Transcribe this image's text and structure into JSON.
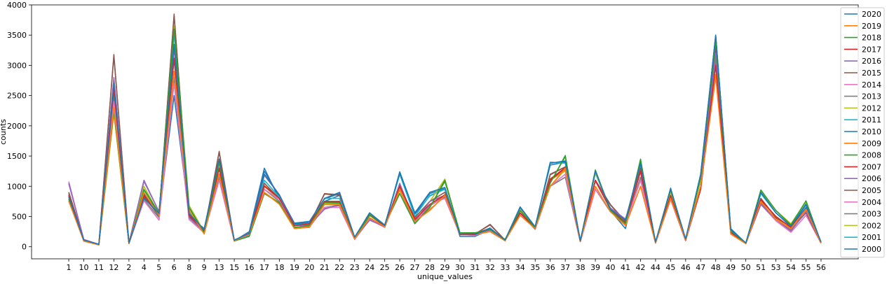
{
  "chart_data": {
    "type": "line",
    "xlabel": "unique_values",
    "ylabel": "counts",
    "ylim": [
      -200,
      4000
    ],
    "yticks": [
      0,
      500,
      1000,
      1500,
      2000,
      2500,
      3000,
      3500,
      4000
    ],
    "grid": false,
    "legend_position": "upper-right",
    "categories": [
      "1",
      "10",
      "11",
      "12",
      "2",
      "4",
      "5",
      "6",
      "8",
      "9",
      "13",
      "15",
      "16",
      "17",
      "18",
      "19",
      "20",
      "21",
      "22",
      "23",
      "24",
      "25",
      "26",
      "27",
      "28",
      "29",
      "30",
      "31",
      "32",
      "33",
      "34",
      "35",
      "36",
      "37",
      "38",
      "39",
      "40",
      "41",
      "42",
      "44",
      "45",
      "46",
      "47",
      "48",
      "49",
      "50",
      "51",
      "53",
      "54",
      "55",
      "56"
    ],
    "series": [
      {
        "name": "2020",
        "color": "#1f77b4",
        "values": [
          820,
          110,
          40,
          2700,
          60,
          800,
          550,
          3350,
          550,
          280,
          1450,
          110,
          220,
          1200,
          850,
          390,
          420,
          800,
          900,
          160,
          560,
          350,
          1220,
          560,
          900,
          980,
          200,
          200,
          300,
          110,
          650,
          330,
          1380,
          1420,
          100,
          1250,
          620,
          440,
          1380,
          80,
          960,
          130,
          1200,
          3500,
          280,
          60,
          900,
          560,
          340,
          700,
          80
        ]
      },
      {
        "name": "2019",
        "color": "#ff7f0e",
        "values": [
          750,
          90,
          30,
          2300,
          50,
          900,
          520,
          2900,
          600,
          210,
          1200,
          100,
          210,
          900,
          700,
          300,
          330,
          700,
          700,
          130,
          480,
          330,
          950,
          420,
          600,
          850,
          200,
          200,
          250,
          100,
          520,
          300,
          1000,
          1300,
          90,
          1000,
          580,
          350,
          1000,
          60,
          800,
          110,
          1000,
          2800,
          210,
          50,
          750,
          450,
          300,
          620,
          60
        ]
      },
      {
        "name": "2018",
        "color": "#2ca02c",
        "values": [
          780,
          100,
          35,
          2250,
          55,
          950,
          560,
          3600,
          650,
          230,
          1400,
          95,
          170,
          880,
          720,
          320,
          350,
          730,
          720,
          140,
          520,
          360,
          880,
          380,
          650,
          1100,
          230,
          230,
          280,
          120,
          600,
          320,
          1050,
          1510,
          95,
          1270,
          600,
          380,
          1450,
          70,
          940,
          120,
          1150,
          3400,
          260,
          60,
          940,
          600,
          360,
          760,
          70
        ]
      },
      {
        "name": "2017",
        "color": "#d62728",
        "values": [
          850,
          100,
          35,
          2600,
          55,
          850,
          530,
          3100,
          520,
          260,
          1300,
          100,
          220,
          1000,
          800,
          350,
          380,
          750,
          750,
          140,
          520,
          340,
          1000,
          450,
          700,
          860,
          210,
          220,
          300,
          110,
          560,
          320,
          1100,
          1300,
          90,
          1100,
          620,
          400,
          1250,
          70,
          850,
          110,
          950,
          3000,
          240,
          55,
          780,
          500,
          320,
          620,
          60
        ]
      },
      {
        "name": "2016",
        "color": "#9467bd",
        "values": [
          1050,
          120,
          40,
          2800,
          65,
          1100,
          580,
          3300,
          480,
          260,
          1200,
          100,
          230,
          1200,
          860,
          350,
          360,
          620,
          700,
          140,
          440,
          330,
          1050,
          420,
          750,
          850,
          210,
          210,
          290,
          110,
          600,
          300,
          1100,
          1300,
          90,
          1100,
          640,
          460,
          1250,
          70,
          830,
          120,
          1000,
          3200,
          260,
          60,
          700,
          450,
          260,
          580,
          70
        ]
      },
      {
        "name": "2015",
        "color": "#8c564b",
        "values": [
          900,
          110,
          40,
          3180,
          60,
          820,
          520,
          3850,
          500,
          250,
          1580,
          100,
          230,
          1050,
          800,
          350,
          370,
          880,
          860,
          150,
          530,
          350,
          1000,
          480,
          750,
          900,
          210,
          210,
          370,
          110,
          560,
          290,
          1200,
          1320,
          90,
          1100,
          700,
          420,
          1300,
          70,
          800,
          110,
          1000,
          3300,
          250,
          60,
          800,
          480,
          330,
          560,
          65
        ]
      },
      {
        "name": "2014",
        "color": "#e377c2",
        "values": [
          1080,
          110,
          38,
          2400,
          55,
          760,
          440,
          2700,
          450,
          230,
          1100,
          95,
          200,
          950,
          780,
          320,
          330,
          650,
          650,
          120,
          450,
          320,
          980,
          400,
          700,
          800,
          200,
          190,
          260,
          100,
          540,
          290,
          1000,
          1200,
          85,
          950,
          600,
          370,
          1100,
          60,
          780,
          100,
          950,
          3000,
          230,
          55,
          700,
          430,
          240,
          520,
          60
        ]
      },
      {
        "name": "2013",
        "color": "#7f7f7f",
        "values": [
          870,
          100,
          35,
          2500,
          55,
          780,
          480,
          2800,
          480,
          240,
          1150,
          95,
          210,
          950,
          750,
          320,
          330,
          650,
          680,
          130,
          470,
          330,
          950,
          400,
          680,
          820,
          200,
          200,
          270,
          100,
          550,
          300,
          1000,
          1150,
          85,
          950,
          580,
          380,
          1150,
          65,
          790,
          100,
          980,
          3100,
          230,
          55,
          720,
          440,
          280,
          560,
          60
        ]
      },
      {
        "name": "2012",
        "color": "#bcbd22",
        "values": [
          800,
          100,
          35,
          2200,
          55,
          1000,
          540,
          3650,
          680,
          250,
          1350,
          100,
          220,
          1000,
          780,
          320,
          350,
          720,
          720,
          140,
          540,
          350,
          950,
          410,
          750,
          1120,
          220,
          230,
          290,
          110,
          620,
          320,
          1100,
          1250,
          90,
          1230,
          620,
          400,
          1300,
          70,
          900,
          120,
          1100,
          3350,
          270,
          60,
          930,
          600,
          380,
          740,
          70
        ]
      },
      {
        "name": "2011",
        "color": "#17becf",
        "values": [
          830,
          105,
          38,
          2550,
          58,
          850,
          540,
          3550,
          560,
          270,
          1400,
          110,
          220,
          1100,
          820,
          360,
          380,
          800,
          800,
          150,
          560,
          350,
          1200,
          500,
          850,
          950,
          220,
          220,
          300,
          110,
          650,
          320,
          1400,
          1380,
          95,
          1220,
          620,
          420,
          1350,
          75,
          930,
          120,
          1150,
          3450,
          280,
          60,
          880,
          560,
          340,
          720,
          70
        ]
      },
      {
        "name": "2010",
        "color": "#1f77b4",
        "values": [
          860,
          110,
          40,
          2750,
          60,
          870,
          560,
          3300,
          540,
          270,
          1450,
          105,
          220,
          1250,
          830,
          370,
          400,
          790,
          880,
          150,
          560,
          350,
          1240,
          560,
          880,
          960,
          210,
          210,
          310,
          110,
          660,
          330,
          1380,
          1410,
          95,
          1240,
          620,
          430,
          1380,
          75,
          950,
          120,
          1200,
          3480,
          280,
          60,
          900,
          560,
          340,
          690,
          75
        ]
      },
      {
        "name": "2009",
        "color": "#ff7f0e",
        "values": [
          760,
          95,
          32,
          2350,
          52,
          880,
          520,
          2800,
          580,
          220,
          1180,
          100,
          200,
          900,
          720,
          300,
          320,
          700,
          690,
          130,
          470,
          330,
          930,
          410,
          620,
          830,
          200,
          200,
          250,
          100,
          520,
          300,
          1000,
          1280,
          90,
          1000,
          580,
          350,
          1000,
          60,
          790,
          110,
          1000,
          2850,
          210,
          50,
          740,
          460,
          300,
          610,
          60
        ]
      },
      {
        "name": "2008",
        "color": "#2ca02c",
        "values": [
          790,
          100,
          36,
          2260,
          56,
          940,
          550,
          3580,
          640,
          230,
          1380,
          95,
          180,
          890,
          730,
          320,
          350,
          740,
          730,
          140,
          520,
          360,
          880,
          390,
          650,
          1080,
          230,
          230,
          280,
          120,
          600,
          320,
          1060,
          1490,
          95,
          1260,
          600,
          380,
          1430,
          70,
          930,
          120,
          1140,
          3380,
          260,
          60,
          930,
          600,
          360,
          750,
          70
        ]
      },
      {
        "name": "2007",
        "color": "#d62728",
        "values": [
          840,
          100,
          35,
          2580,
          55,
          840,
          530,
          3120,
          520,
          260,
          1290,
          100,
          220,
          1010,
          800,
          350,
          380,
          750,
          740,
          140,
          520,
          340,
          1010,
          450,
          700,
          850,
          210,
          220,
          300,
          110,
          560,
          320,
          1120,
          1310,
          90,
          1090,
          620,
          400,
          1240,
          70,
          840,
          110,
          950,
          3020,
          240,
          55,
          770,
          500,
          320,
          610,
          60
        ]
      },
      {
        "name": "2006",
        "color": "#9467bd",
        "values": [
          1040,
          120,
          40,
          2780,
          65,
          1080,
          580,
          3280,
          480,
          260,
          1200,
          100,
          230,
          1180,
          860,
          350,
          360,
          630,
          700,
          140,
          440,
          330,
          1040,
          420,
          750,
          850,
          210,
          210,
          290,
          110,
          600,
          300,
          1100,
          1300,
          90,
          1100,
          640,
          450,
          1240,
          70,
          830,
          120,
          1000,
          3180,
          260,
          60,
          700,
          450,
          260,
          580,
          70
        ]
      },
      {
        "name": "2005",
        "color": "#8c564b",
        "values": [
          890,
          110,
          40,
          3150,
          60,
          820,
          520,
          3820,
          500,
          250,
          1560,
          100,
          230,
          1050,
          800,
          350,
          370,
          870,
          850,
          150,
          530,
          350,
          1000,
          480,
          750,
          900,
          210,
          210,
          360,
          110,
          560,
          290,
          1190,
          1320,
          90,
          1100,
          690,
          420,
          1290,
          70,
          800,
          110,
          1000,
          3280,
          250,
          60,
          800,
          480,
          330,
          560,
          65
        ]
      },
      {
        "name": "2004",
        "color": "#e377c2",
        "values": [
          1060,
          110,
          38,
          2420,
          55,
          760,
          440,
          2720,
          450,
          230,
          1100,
          95,
          200,
          950,
          780,
          320,
          330,
          650,
          650,
          120,
          450,
          320,
          980,
          400,
          700,
          800,
          200,
          190,
          260,
          100,
          540,
          290,
          1000,
          1200,
          85,
          950,
          600,
          370,
          1100,
          60,
          780,
          100,
          950,
          3000,
          230,
          55,
          700,
          430,
          240,
          520,
          60
        ]
      },
      {
        "name": "2003",
        "color": "#7f7f7f",
        "values": [
          870,
          100,
          35,
          2500,
          55,
          780,
          480,
          2820,
          480,
          240,
          1150,
          95,
          210,
          950,
          750,
          320,
          330,
          650,
          680,
          130,
          470,
          330,
          950,
          400,
          680,
          820,
          200,
          200,
          270,
          100,
          550,
          300,
          1000,
          1150,
          85,
          950,
          580,
          380,
          1150,
          65,
          790,
          100,
          980,
          3100,
          230,
          55,
          720,
          440,
          280,
          560,
          60
        ]
      },
      {
        "name": "2002",
        "color": "#bcbd22",
        "values": [
          800,
          100,
          35,
          2200,
          55,
          1000,
          540,
          3620,
          680,
          250,
          1340,
          100,
          220,
          1000,
          780,
          320,
          350,
          720,
          720,
          140,
          540,
          350,
          950,
          410,
          750,
          1110,
          220,
          230,
          290,
          110,
          620,
          320,
          1100,
          1260,
          90,
          1230,
          620,
          400,
          1300,
          70,
          900,
          120,
          1100,
          3340,
          270,
          60,
          920,
          600,
          380,
          740,
          70
        ]
      },
      {
        "name": "2001",
        "color": "#17becf",
        "values": [
          830,
          105,
          38,
          2550,
          58,
          850,
          540,
          3520,
          560,
          270,
          1400,
          110,
          220,
          1100,
          820,
          360,
          380,
          800,
          800,
          150,
          560,
          350,
          1200,
          500,
          850,
          950,
          220,
          220,
          300,
          110,
          650,
          320,
          1400,
          1380,
          95,
          1220,
          620,
          420,
          1340,
          75,
          930,
          120,
          1150,
          3430,
          280,
          60,
          880,
          560,
          340,
          720,
          70
        ]
      },
      {
        "name": "2000",
        "color": "#1f77b4",
        "values": [
          900,
          100,
          30,
          2720,
          55,
          850,
          500,
          2500,
          520,
          300,
          1450,
          100,
          250,
          1300,
          780,
          380,
          400,
          750,
          850,
          150,
          560,
          360,
          1200,
          540,
          840,
          950,
          170,
          170,
          280,
          100,
          640,
          330,
          1350,
          1400,
          90,
          1220,
          600,
          300,
          1350,
          70,
          970,
          120,
          1150,
          3500,
          300,
          60,
          880,
          560,
          330,
          650,
          70
        ]
      }
    ]
  }
}
